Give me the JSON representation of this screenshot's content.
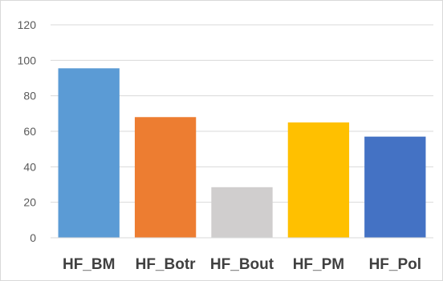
{
  "chart_data": {
    "type": "bar",
    "categories": [
      "HF_BM",
      "HF_Botr",
      "HF_Bout",
      "HF_PM",
      "HF_Pol"
    ],
    "values": [
      95.5,
      68,
      28.5,
      65,
      57
    ],
    "colors": [
      "#5B9BD5",
      "#ED7D31",
      "#D0CECE",
      "#FFC000",
      "#4472C4"
    ],
    "ylim": [
      0,
      120
    ],
    "yticks": [
      0,
      20,
      40,
      60,
      80,
      100,
      120
    ],
    "grid": true,
    "legend": "none",
    "title": "",
    "xlabel": "",
    "ylabel": ""
  }
}
